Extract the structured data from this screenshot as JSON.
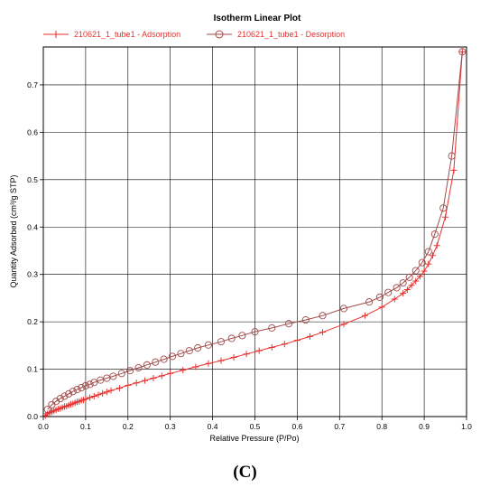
{
  "panel_label": "(C)",
  "chart_data": {
    "type": "line",
    "title": "Isotherm Linear Plot",
    "xlabel": "Relative Pressure (P/Po)",
    "ylabel": "Quantity Adsorbed (cm³/g STP)",
    "xlim": [
      0,
      1.0
    ],
    "ylim": [
      0,
      0.78
    ],
    "xticks": [
      "0.0",
      "0.1",
      "0.2",
      "0.3",
      "0.4",
      "0.5",
      "0.6",
      "0.7",
      "0.8",
      "0.9",
      "1.0"
    ],
    "yticks": [
      "0.0",
      "0.1",
      "0.2",
      "0.3",
      "0.4",
      "0.5",
      "0.6",
      "0.7"
    ],
    "grid": true,
    "legend_position": "top",
    "series": [
      {
        "name": "210621_1_tube1 - Adsorption",
        "marker": "plus",
        "color": "#e8312f",
        "x": [
          0.005,
          0.01,
          0.015,
          0.02,
          0.025,
          0.03,
          0.035,
          0.04,
          0.045,
          0.05,
          0.055,
          0.06,
          0.065,
          0.07,
          0.075,
          0.08,
          0.085,
          0.09,
          0.095,
          0.1,
          0.11,
          0.12,
          0.13,
          0.14,
          0.15,
          0.16,
          0.18,
          0.2,
          0.22,
          0.24,
          0.26,
          0.28,
          0.3,
          0.33,
          0.36,
          0.39,
          0.42,
          0.45,
          0.48,
          0.51,
          0.54,
          0.57,
          0.6,
          0.63,
          0.66,
          0.71,
          0.76,
          0.8,
          0.83,
          0.85,
          0.86,
          0.87,
          0.88,
          0.89,
          0.9,
          0.91,
          0.92,
          0.93,
          0.95,
          0.97,
          0.99
        ],
        "y": [
          0.002,
          0.006,
          0.008,
          0.01,
          0.012,
          0.014,
          0.016,
          0.017,
          0.019,
          0.021,
          0.022,
          0.024,
          0.026,
          0.027,
          0.029,
          0.031,
          0.032,
          0.034,
          0.035,
          0.037,
          0.04,
          0.043,
          0.046,
          0.049,
          0.052,
          0.055,
          0.06,
          0.066,
          0.071,
          0.076,
          0.081,
          0.086,
          0.091,
          0.098,
          0.105,
          0.112,
          0.118,
          0.125,
          0.132,
          0.139,
          0.146,
          0.153,
          0.161,
          0.169,
          0.178,
          0.195,
          0.213,
          0.231,
          0.248,
          0.26,
          0.268,
          0.277,
          0.286,
          0.296,
          0.307,
          0.322,
          0.34,
          0.361,
          0.421,
          0.52,
          0.77
        ]
      },
      {
        "name": "210621_1_tube1 - Desorption",
        "marker": "circle",
        "color": "#a14a4a",
        "x": [
          0.99,
          0.965,
          0.945,
          0.925,
          0.91,
          0.895,
          0.88,
          0.865,
          0.85,
          0.835,
          0.815,
          0.795,
          0.77,
          0.71,
          0.66,
          0.62,
          0.58,
          0.54,
          0.5,
          0.47,
          0.445,
          0.42,
          0.39,
          0.365,
          0.345,
          0.325,
          0.305,
          0.285,
          0.265,
          0.245,
          0.225,
          0.205,
          0.185,
          0.165,
          0.15,
          0.135,
          0.12,
          0.11,
          0.1,
          0.09,
          0.08,
          0.07,
          0.06,
          0.05,
          0.04,
          0.03,
          0.02,
          0.01
        ],
        "y": [
          0.77,
          0.55,
          0.44,
          0.385,
          0.348,
          0.325,
          0.308,
          0.294,
          0.282,
          0.272,
          0.262,
          0.252,
          0.242,
          0.228,
          0.213,
          0.204,
          0.196,
          0.187,
          0.179,
          0.171,
          0.165,
          0.158,
          0.151,
          0.145,
          0.139,
          0.133,
          0.127,
          0.121,
          0.115,
          0.109,
          0.103,
          0.097,
          0.091,
          0.085,
          0.081,
          0.077,
          0.072,
          0.068,
          0.065,
          0.061,
          0.057,
          0.053,
          0.048,
          0.043,
          0.038,
          0.032,
          0.025,
          0.015
        ]
      }
    ]
  }
}
